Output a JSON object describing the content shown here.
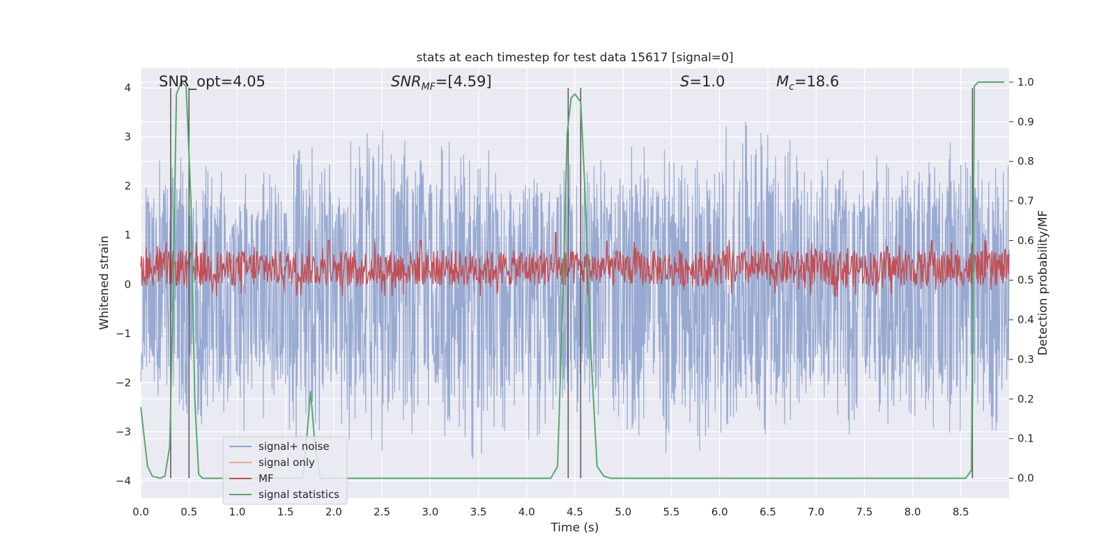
{
  "chart_data": {
    "type": "line",
    "title": "stats at each timestep for test data 15617 [signal=0]",
    "xlabel": "Time (s)",
    "ylabel_left": "Whitened strain",
    "ylabel_right": "Detection probability/MF",
    "xlim": [
      0.0,
      9.0
    ],
    "ylim_left": [
      -4.35,
      4.4
    ],
    "ylim_right": [
      -0.05,
      1.035
    ],
    "grid": true,
    "legend_position": "lower-left",
    "x_ticks": [
      0.0,
      0.5,
      1.0,
      1.5,
      2.0,
      2.5,
      3.0,
      3.5,
      4.0,
      4.5,
      5.0,
      5.5,
      6.0,
      6.5,
      7.0,
      7.5,
      8.0,
      8.5
    ],
    "x_tick_labels": [
      "0.0",
      "0.5",
      "1.0",
      "1.5",
      "2.0",
      "2.5",
      "3.0",
      "3.5",
      "4.0",
      "4.5",
      "5.0",
      "5.5",
      "6.0",
      "6.5",
      "7.0",
      "7.5",
      "8.0",
      "8.5"
    ],
    "y_left_ticks": [
      4,
      3,
      2,
      1,
      0,
      -1,
      -2,
      -3,
      -4
    ],
    "y_left_tick_labels": [
      "4",
      "3",
      "2",
      "1",
      "0",
      "−1",
      "−2",
      "−3",
      "−4"
    ],
    "y_right_ticks": [
      1.0,
      0.9,
      0.8,
      0.7,
      0.6,
      0.5,
      0.4,
      0.3,
      0.2,
      0.1,
      0.0
    ],
    "y_right_tick_labels": [
      "1.0",
      "0.9",
      "0.8",
      "0.7",
      "0.6",
      "0.5",
      "0.4",
      "0.3",
      "0.2",
      "0.1",
      "0.0"
    ],
    "annotations": {
      "snr_opt": "SNR_opt=4.05",
      "snr_mf_main": "SNR",
      "snr_mf_sub": "MF",
      "snr_mf_rest": "=[4.59]",
      "s_main": "S",
      "s_rest": "=1.0",
      "mc_main": "M",
      "mc_sub": "c",
      "mc_rest": "=18.6"
    },
    "vertical_lines_x": [
      0.31,
      0.5,
      4.43,
      4.56,
      8.62
    ],
    "series": [
      {
        "name": "signal+ noise",
        "color": "#8fa3cd",
        "note_envelope": true,
        "envelope": {
          "x": [
            0.0,
            0.5,
            1.0,
            1.5,
            2.0,
            2.5,
            3.0,
            3.5,
            4.0,
            4.5,
            5.0,
            5.5,
            6.0,
            6.5,
            7.0,
            7.5,
            8.0,
            8.5,
            9.0
          ],
          "upper": [
            2.9,
            3.0,
            2.3,
            3.0,
            2.8,
            3.6,
            3.4,
            3.0,
            2.9,
            3.3,
            3.0,
            3.1,
            3.3,
            3.7,
            3.0,
            2.8,
            3.1,
            3.2,
            2.6
          ],
          "lower": [
            -2.6,
            -3.3,
            -3.1,
            -3.4,
            -3.3,
            -3.6,
            -3.3,
            -3.8,
            -3.5,
            -3.1,
            -3.4,
            -3.7,
            -3.5,
            -3.2,
            -3.0,
            -3.5,
            -3.0,
            -3.6,
            -3.2
          ]
        }
      },
      {
        "name": "signal only",
        "color": "#e8a98c",
        "x": [],
        "y": []
      },
      {
        "name": "MF",
        "color": "#c44e52",
        "axis": "right",
        "base": 0.53,
        "amplitude": 0.045,
        "peaks": [
          [
            4.3,
            0.62
          ],
          [
            1.95,
            0.6
          ],
          [
            2.9,
            0.6
          ],
          [
            8.2,
            0.6
          ]
        ]
      },
      {
        "name": "signal statistics",
        "color": "#55a868",
        "axis": "right",
        "x": [
          0.0,
          0.07,
          0.12,
          0.2,
          0.25,
          0.3,
          0.33,
          0.37,
          0.42,
          0.47,
          0.52,
          0.56,
          0.6,
          0.64,
          0.7,
          0.8,
          1.5,
          1.68,
          1.72,
          1.76,
          1.8,
          1.86,
          1.92,
          2.0,
          3.0,
          4.25,
          4.32,
          4.38,
          4.42,
          4.46,
          4.5,
          4.56,
          4.6,
          4.67,
          4.73,
          4.8,
          4.87,
          4.95,
          7.5,
          8.0,
          8.55,
          8.61,
          8.64,
          8.68,
          8.73,
          8.8,
          8.95
        ],
        "y": [
          0.18,
          0.03,
          0.005,
          0.0,
          0.005,
          0.08,
          0.4,
          0.97,
          1.0,
          0.99,
          0.7,
          0.2,
          0.01,
          0.0,
          0.0,
          0.0,
          0.0,
          0.0,
          0.1,
          0.22,
          0.1,
          0.0,
          0.0,
          0.0,
          0.0,
          0.0,
          0.03,
          0.5,
          0.87,
          0.96,
          0.97,
          0.95,
          0.75,
          0.3,
          0.03,
          0.005,
          0.0,
          0.0,
          0.0,
          0.0,
          0.0,
          0.02,
          0.99,
          1.0,
          1.0,
          1.0,
          1.0
        ]
      }
    ]
  }
}
